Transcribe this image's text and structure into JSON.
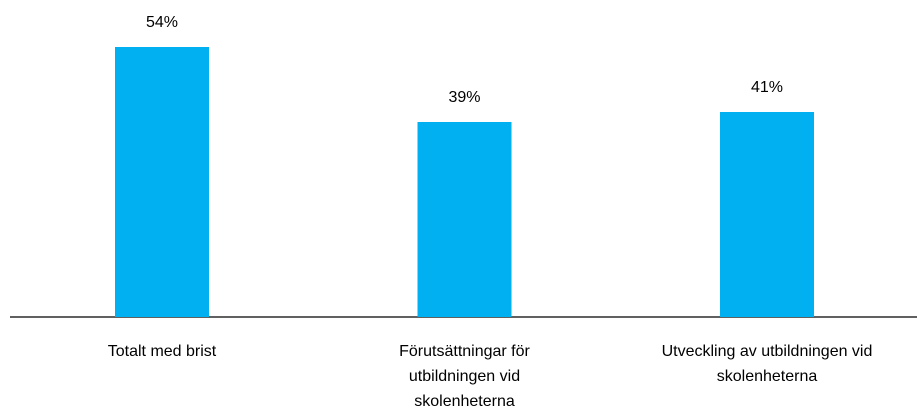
{
  "chart_data": {
    "type": "bar",
    "categories": [
      "Totalt med brist",
      "Förutsättningar för utbildningen vid skolenheterna",
      "Utveckling av utbildningen vid skolenheterna"
    ],
    "values": [
      54,
      39,
      41
    ],
    "value_labels": [
      "54%",
      "39%",
      "41%"
    ],
    "color": "#00b0f0"
  }
}
